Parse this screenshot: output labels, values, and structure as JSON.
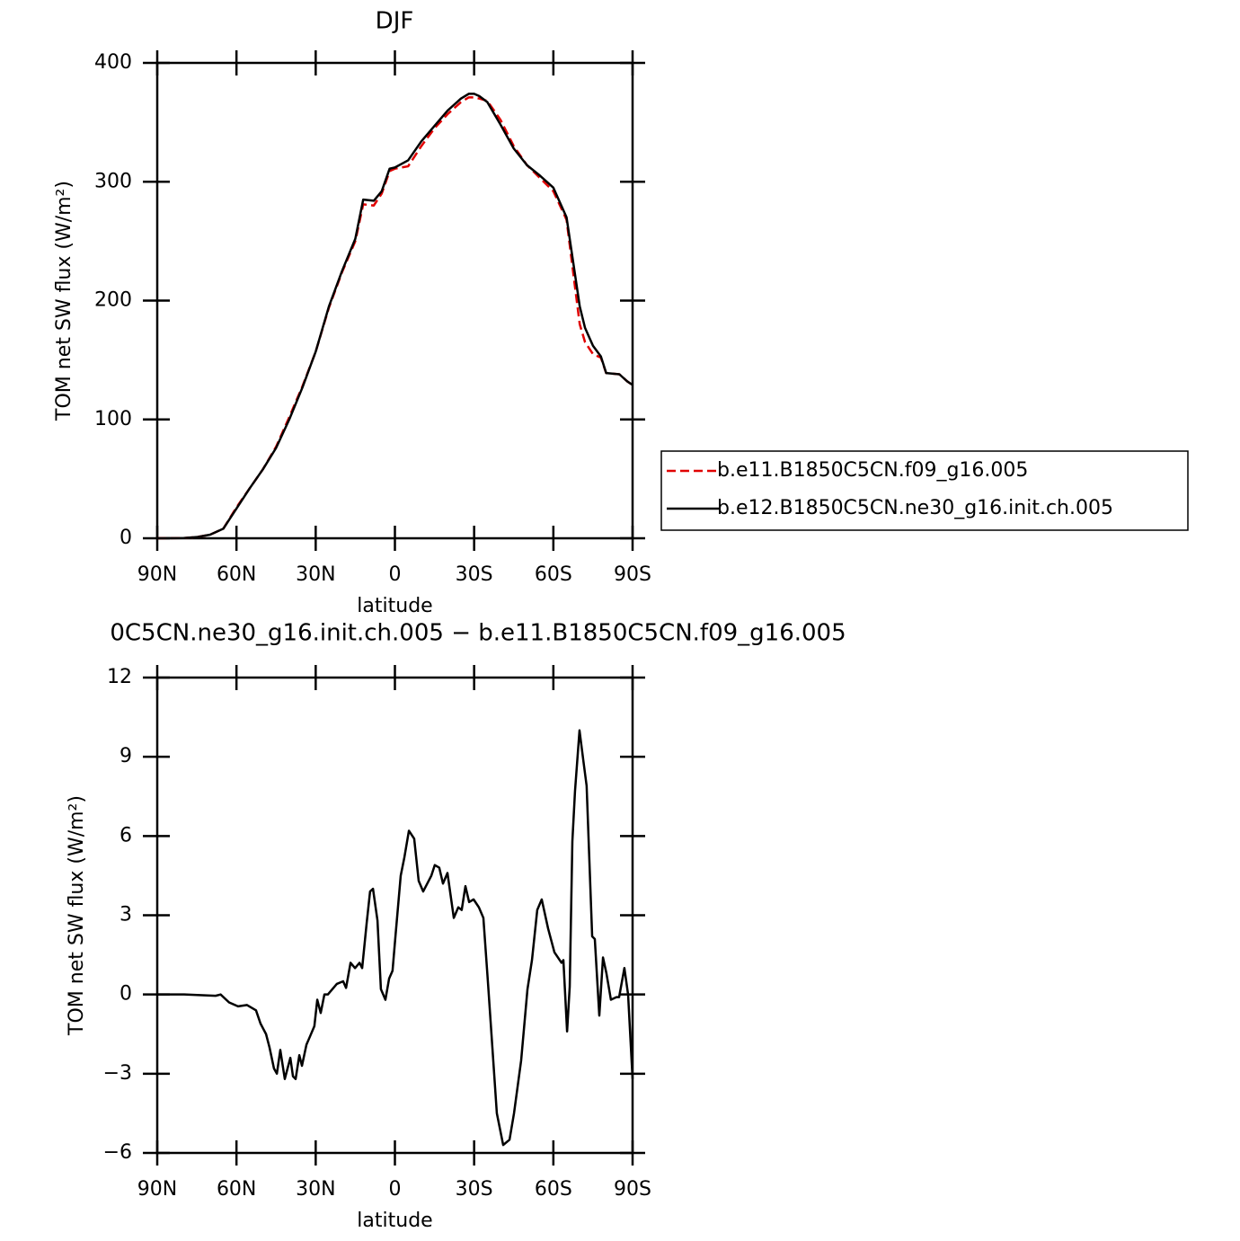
{
  "chart_data": [
    {
      "type": "line",
      "title": "DJF",
      "xlabel": "latitude",
      "ylabel": "TOM net SW flux (W/m²)",
      "xlim": [
        90,
        -90
      ],
      "xticks": [
        {
          "value": 90,
          "label": "90N"
        },
        {
          "value": 60,
          "label": "60N"
        },
        {
          "value": 30,
          "label": "30N"
        },
        0,
        {
          "value": -30,
          "label": "30S"
        },
        {
          "value": -60,
          "label": "60S"
        },
        {
          "value": -90,
          "label": "90S"
        }
      ],
      "ylim": [
        0,
        400
      ],
      "yticks": [
        0,
        100,
        200,
        300,
        400
      ],
      "x": [
        90,
        80,
        75,
        70,
        65,
        60,
        55,
        50,
        45,
        40,
        35,
        30,
        25,
        20,
        15,
        12,
        8,
        5,
        2,
        0,
        -5,
        -10,
        -15,
        -20,
        -25,
        -28,
        -30,
        -32,
        -35,
        -40,
        -45,
        -50,
        -55,
        -60,
        -65,
        -68,
        -70,
        -72,
        -75,
        -78,
        -80,
        -85,
        -88,
        -90
      ],
      "legend": "right",
      "series": [
        {
          "name": "b.e11.B1850C5CN.f09_g16.005",
          "color": "#e00000",
          "linestyle": "dashed",
          "values": [
            0,
            0.2,
            1,
            3,
            8,
            26,
            42,
            58,
            77,
            102,
            128,
            157,
            194,
            224,
            250,
            281,
            280,
            290,
            309,
            311,
            313,
            330,
            345,
            357,
            367,
            371,
            371,
            370,
            368,
            352,
            330,
            314,
            303,
            292,
            268,
            215,
            180,
            165,
            155,
            152,
            139,
            138,
            132,
            129
          ]
        },
        {
          "name": "b.e12.B1850C5CN.ne30_g16.init.ch.005",
          "color": "#000000",
          "linestyle": "solid",
          "values": [
            0,
            0.2,
            1,
            3,
            8,
            25,
            42,
            58,
            76,
            100,
            127,
            157,
            195,
            225,
            252,
            285,
            284,
            292,
            311,
            312,
            318,
            334,
            347,
            360,
            370,
            374,
            374,
            372,
            367,
            348,
            328,
            314,
            305,
            295,
            270,
            225,
            195,
            177,
            162,
            153,
            139,
            138,
            132,
            129
          ]
        }
      ]
    },
    {
      "type": "line",
      "title": "0C5CN.ne30_g16.init.ch.005 − b.e11.B1850C5CN.f09_g16.005",
      "xlabel": "latitude",
      "ylabel": "TOM net SW flux (W/m²)",
      "xlim": [
        90,
        -90
      ],
      "xticks": [
        {
          "value": 90,
          "label": "90N"
        },
        {
          "value": 60,
          "label": "60N"
        },
        {
          "value": 30,
          "label": "30N"
        },
        0,
        {
          "value": -30,
          "label": "30S"
        },
        {
          "value": -60,
          "label": "60S"
        },
        {
          "value": -90,
          "label": "90S"
        }
      ],
      "ylim": [
        -6,
        12
      ],
      "yticks": [
        {
          "value": -6,
          "label": "−6"
        },
        {
          "value": -3,
          "label": "−3"
        },
        0,
        3,
        6,
        9,
        12
      ],
      "x": [
        90,
        79.8,
        67.9,
        66,
        62.8,
        59.4,
        56,
        52.6,
        50.9,
        48.8,
        47.5,
        45.8,
        44.7,
        43.4,
        41.7,
        39.6,
        38.6,
        37.6,
        36.2,
        35.2,
        33.5,
        32.2,
        30.5,
        29.4,
        28.1,
        26.7,
        25.4,
        23.7,
        22,
        19.6,
        18.5,
        16.8,
        15.1,
        13.4,
        12.4,
        10.7,
        9.4,
        8.3,
        6.6,
        5.3,
        3.6,
        2.2,
        0.9,
        -0.2,
        -2.2,
        -3.6,
        -5.3,
        -7.3,
        -9,
        -10.7,
        -13.8,
        -15.1,
        -16.8,
        -18.2,
        -19.9,
        -22.3,
        -24,
        -25.3,
        -26.7,
        -28.1,
        -29.8,
        -31.8,
        -33.5,
        -35.2,
        -36.9,
        -38.6,
        -41,
        -43.4,
        -45.1,
        -47.8,
        -50.2,
        -51.9,
        -53.9,
        -55.6,
        -58,
        -60.4,
        -63.1,
        -63.8,
        -65.2,
        -66.2,
        -67.2,
        -68.2,
        -69.9,
        -71.3,
        -72.6,
        -74.7,
        -75.7,
        -77.4,
        -78.8,
        -80.1,
        -81.8,
        -83.9,
        -84.9,
        -86.9,
        -88.3,
        -90
      ],
      "series": [
        {
          "color": "#000000",
          "linestyle": "solid",
          "values": [
            0,
            0,
            -0.05,
            0,
            -0.3,
            -0.45,
            -0.4,
            -0.6,
            -1.1,
            -1.5,
            -2,
            -2.8,
            -3,
            -2.1,
            -3.2,
            -2.4,
            -3.1,
            -3.2,
            -2.3,
            -2.7,
            -1.9,
            -1.6,
            -1.2,
            -0.2,
            -0.7,
            0,
            0,
            0.2,
            0.4,
            0.5,
            0.25,
            1.2,
            1,
            1.2,
            1,
            2.7,
            3.9,
            4,
            2.8,
            0.2,
            -0.2,
            0.6,
            0.9,
            2.2,
            4.5,
            5.2,
            6.2,
            5.9,
            4.3,
            3.9,
            4.5,
            4.9,
            4.8,
            4.2,
            4.6,
            2.9,
            3.3,
            3.2,
            4.1,
            3.5,
            3.6,
            3.3,
            2.9,
            0.5,
            -2,
            -4.5,
            -5.7,
            -5.5,
            -4.5,
            -2.5,
            0.2,
            1.3,
            3.2,
            3.6,
            2.5,
            1.6,
            1.2,
            1.3,
            -1.4,
            0.3,
            5.8,
            7.7,
            10,
            8.9,
            7.9,
            2.2,
            2.1,
            -0.8,
            1.4,
            0.8,
            -0.2,
            -0.1,
            -0.1,
            1,
            0,
            -3.2
          ]
        }
      ]
    }
  ]
}
